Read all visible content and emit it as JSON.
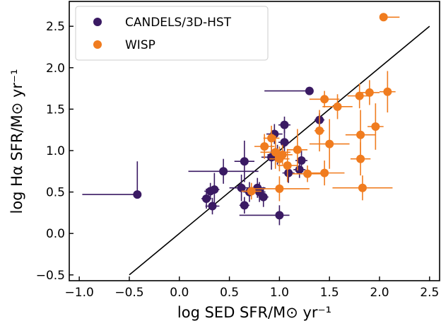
{
  "chart_data": {
    "type": "scatter",
    "title": "",
    "xlabel": "log SED SFR/M⊙ yr⁻¹",
    "ylabel": "log Hα SFR/M⊙ yr⁻¹",
    "xlim": [
      -1.1,
      2.6
    ],
    "ylim": [
      -0.57,
      2.8
    ],
    "xticks": [
      -1.0,
      -0.5,
      0.0,
      0.5,
      1.0,
      1.5,
      2.0,
      2.5
    ],
    "xtick_labels": [
      "−1.0",
      "−0.5",
      "0.0",
      "0.5",
      "1.0",
      "1.5",
      "2.0",
      "2.5"
    ],
    "yticks": [
      -0.5,
      0.0,
      0.5,
      1.0,
      1.5,
      2.0,
      2.5
    ],
    "ytick_labels": [
      "−0.5",
      "0.0",
      "0.5",
      "1.0",
      "1.5",
      "2.0",
      "2.5"
    ],
    "grid": false,
    "legend_position": "top-left",
    "one_to_one_line": {
      "x": [
        -0.5,
        2.5
      ],
      "y": [
        -0.5,
        2.5
      ],
      "color": "#000000"
    },
    "series": [
      {
        "name": "CANDELS/3D-HST",
        "color": "#3a1a63",
        "points": [
          {
            "x": -0.42,
            "y": 0.47,
            "xerr": [
              0.55,
              0.0
            ],
            "yerr": [
              0.0,
              0.4
            ]
          },
          {
            "x": 0.27,
            "y": 0.42,
            "xerr": [
              0.05,
              0.05
            ],
            "yerr": [
              0.12,
              0.12
            ]
          },
          {
            "x": 0.31,
            "y": 0.51,
            "xerr": [
              0.06,
              0.06
            ],
            "yerr": [
              0.1,
              0.1
            ]
          },
          {
            "x": 0.33,
            "y": 0.33,
            "xerr": [
              0.07,
              0.07
            ],
            "yerr": [
              0.1,
              0.1
            ]
          },
          {
            "x": 0.35,
            "y": 0.53,
            "xerr": [
              0.05,
              0.05
            ],
            "yerr": [
              0.2,
              0.2
            ]
          },
          {
            "x": 0.44,
            "y": 0.75,
            "xerr": [
              0.35,
              0.35
            ],
            "yerr": [
              0.15,
              0.15
            ]
          },
          {
            "x": 0.62,
            "y": 0.55,
            "xerr": [
              0.12,
              0.12
            ],
            "yerr": [
              0.16,
              0.16
            ]
          },
          {
            "x": 0.65,
            "y": 0.87,
            "xerr": [
              0.1,
              0.1
            ],
            "yerr": [
              0.25,
              0.25
            ]
          },
          {
            "x": 0.65,
            "y": 0.34,
            "xerr": [
              0.05,
              0.05
            ],
            "yerr": [
              0.1,
              0.1
            ]
          },
          {
            "x": 0.7,
            "y": 0.5,
            "xerr": [
              0.06,
              0.06
            ],
            "yerr": [
              0.12,
              0.12
            ]
          },
          {
            "x": 0.78,
            "y": 0.55,
            "xerr": [
              0.08,
              0.08
            ],
            "yerr": [
              0.12,
              0.12
            ]
          },
          {
            "x": 0.8,
            "y": 0.5,
            "xerr": [
              0.06,
              0.06
            ],
            "yerr": [
              0.12,
              0.12
            ]
          },
          {
            "x": 0.84,
            "y": 0.44,
            "xerr": [
              0.05,
              0.05
            ],
            "yerr": [
              0.12,
              0.12
            ]
          },
          {
            "x": 0.92,
            "y": 0.92,
            "xerr": [
              0.1,
              0.1
            ],
            "yerr": [
              0.15,
              0.15
            ]
          },
          {
            "x": 0.95,
            "y": 1.2,
            "xerr": [
              0.08,
              0.08
            ],
            "yerr": [
              0.12,
              0.12
            ]
          },
          {
            "x": 0.96,
            "y": 0.93,
            "xerr": [
              0.06,
              0.06
            ],
            "yerr": [
              0.1,
              0.1
            ]
          },
          {
            "x": 0.98,
            "y": 0.95,
            "xerr": [
              0.1,
              0.1
            ],
            "yerr": [
              0.12,
              0.12
            ]
          },
          {
            "x": 1.0,
            "y": 0.22,
            "xerr": [
              0.4,
              0.1
            ],
            "yerr": [
              0.12,
              0.12
            ]
          },
          {
            "x": 1.05,
            "y": 1.31,
            "xerr": [
              0.06,
              0.06
            ],
            "yerr": [
              0.1,
              0.1
            ]
          },
          {
            "x": 1.05,
            "y": 1.1,
            "xerr": [
              0.06,
              0.06
            ],
            "yerr": [
              0.15,
              0.15
            ]
          },
          {
            "x": 1.09,
            "y": 0.73,
            "xerr": [
              0.06,
              0.06
            ],
            "yerr": [
              0.12,
              0.12
            ]
          },
          {
            "x": 1.2,
            "y": 0.77,
            "xerr": [
              0.06,
              0.06
            ],
            "yerr": [
              0.1,
              0.1
            ]
          },
          {
            "x": 1.22,
            "y": 0.88,
            "xerr": [
              0.06,
              0.06
            ],
            "yerr": [
              0.12,
              0.12
            ]
          },
          {
            "x": 1.3,
            "y": 1.72,
            "xerr": [
              0.45,
              0.0
            ],
            "yerr": [
              0.0,
              0.0
            ]
          },
          {
            "x": 1.4,
            "y": 1.37,
            "xerr": [
              0.05,
              0.05
            ],
            "yerr": [
              0.08,
              0.08
            ]
          }
        ]
      },
      {
        "name": "WISP",
        "color": "#f07c1f",
        "points": [
          {
            "x": 2.04,
            "y": 2.61,
            "xerr": [
              0.0,
              0.16
            ],
            "yerr": [
              0.0,
              0.0
            ]
          },
          {
            "x": 2.08,
            "y": 1.71,
            "xerr": [
              0.08,
              0.08
            ],
            "yerr": [
              0.25,
              0.25
            ]
          },
          {
            "x": 1.9,
            "y": 1.7,
            "xerr": [
              0.1,
              0.1
            ],
            "yerr": [
              0.15,
              0.15
            ]
          },
          {
            "x": 1.8,
            "y": 1.66,
            "xerr": [
              0.12,
              0.12
            ],
            "yerr": [
              0.15,
              0.15
            ]
          },
          {
            "x": 1.96,
            "y": 1.29,
            "xerr": [
              0.08,
              0.08
            ],
            "yerr": [
              0.28,
              0.28
            ]
          },
          {
            "x": 1.81,
            "y": 1.19,
            "xerr": [
              0.15,
              0.15
            ],
            "yerr": [
              0.3,
              0.3
            ]
          },
          {
            "x": 1.81,
            "y": 0.9,
            "xerr": [
              0.1,
              0.1
            ],
            "yerr": [
              0.2,
              0.2
            ]
          },
          {
            "x": 1.83,
            "y": 0.55,
            "xerr": [
              0.3,
              0.3
            ],
            "yerr": [
              0.15,
              0.15
            ]
          },
          {
            "x": 1.58,
            "y": 1.53,
            "xerr": [
              0.15,
              0.15
            ],
            "yerr": [
              0.15,
              0.15
            ]
          },
          {
            "x": 1.45,
            "y": 1.62,
            "xerr": [
              0.15,
              0.15
            ],
            "yerr": [
              0.1,
              0.1
            ]
          },
          {
            "x": 1.5,
            "y": 1.08,
            "xerr": [
              0.2,
              0.2
            ],
            "yerr": [
              0.3,
              0.3
            ]
          },
          {
            "x": 1.45,
            "y": 0.73,
            "xerr": [
              0.2,
              0.2
            ],
            "yerr": [
              0.15,
              0.15
            ]
          },
          {
            "x": 1.4,
            "y": 1.24,
            "xerr": [
              0.05,
              0.05
            ],
            "yerr": [
              0.25,
              0.25
            ]
          },
          {
            "x": 1.28,
            "y": 0.72,
            "xerr": [
              0.15,
              0.15
            ],
            "yerr": [
              0.1,
              0.1
            ]
          },
          {
            "x": 1.18,
            "y": 1.01,
            "xerr": [
              0.1,
              0.1
            ],
            "yerr": [
              0.25,
              0.25
            ]
          },
          {
            "x": 1.08,
            "y": 0.82,
            "xerr": [
              0.1,
              0.1
            ],
            "yerr": [
              0.2,
              0.2
            ]
          },
          {
            "x": 1.0,
            "y": 0.9,
            "xerr": [
              0.1,
              0.1
            ],
            "yerr": [
              0.15,
              0.15
            ]
          },
          {
            "x": 0.96,
            "y": 0.98,
            "xerr": [
              0.15,
              0.15
            ],
            "yerr": [
              0.2,
              0.2
            ]
          },
          {
            "x": 0.92,
            "y": 1.15,
            "xerr": [
              0.08,
              0.08
            ],
            "yerr": [
              0.15,
              0.15
            ]
          },
          {
            "x": 0.85,
            "y": 1.05,
            "xerr": [
              0.1,
              0.1
            ],
            "yerr": [
              0.15,
              0.15
            ]
          },
          {
            "x": 1.0,
            "y": 0.54,
            "xerr": [
              0.3,
              0.3
            ],
            "yerr": [
              0.15,
              0.15
            ]
          },
          {
            "x": 0.72,
            "y": 0.51,
            "xerr": [
              0.1,
              0.1
            ],
            "yerr": [
              0.1,
              0.1
            ]
          },
          {
            "x": 1.03,
            "y": 0.95,
            "xerr": [
              0.1,
              0.1
            ],
            "yerr": [
              0.12,
              0.12
            ]
          }
        ]
      }
    ]
  }
}
